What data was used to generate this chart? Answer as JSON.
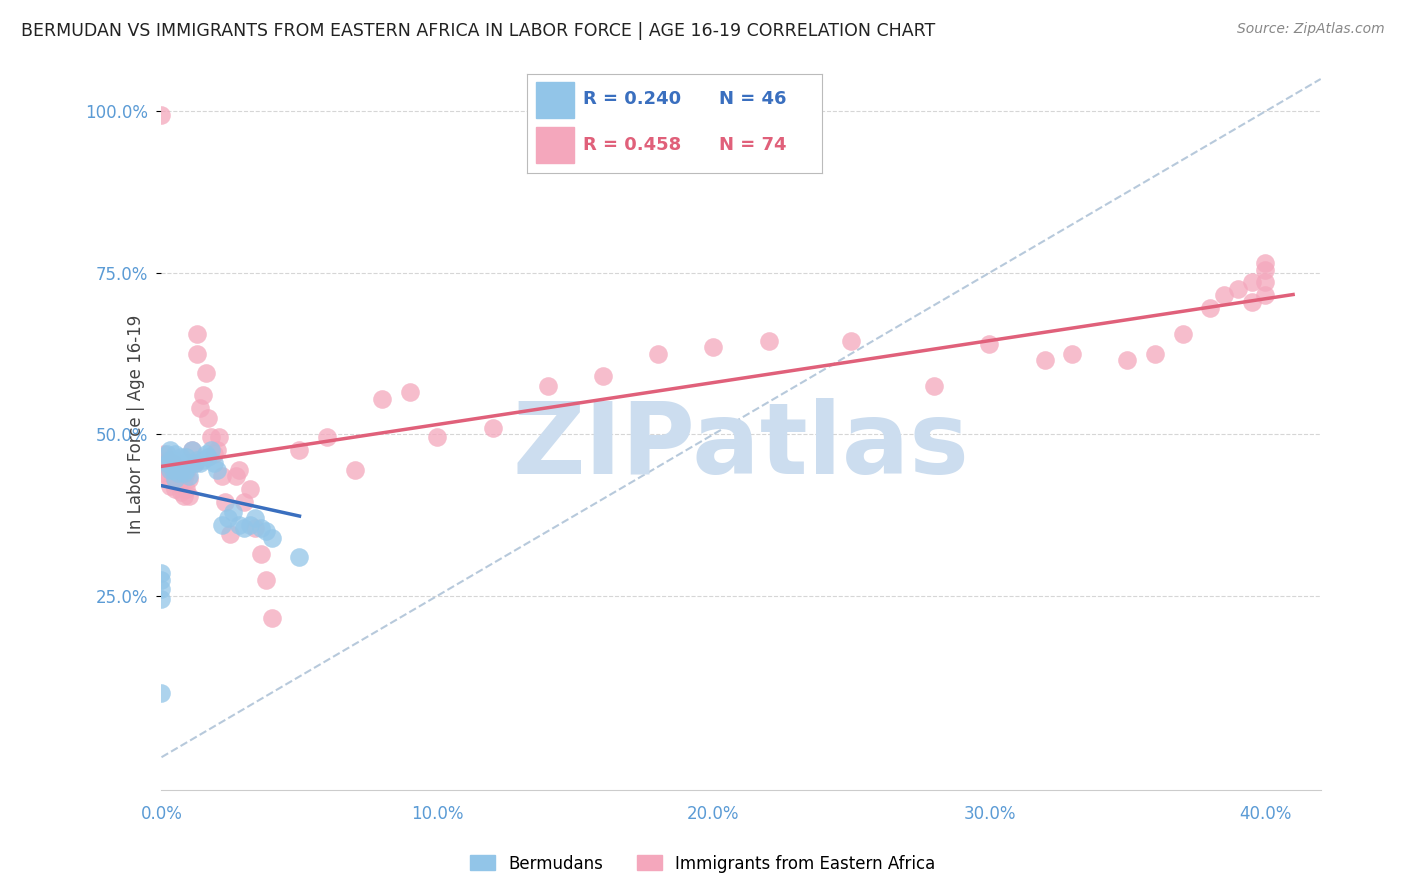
{
  "title": "BERMUDAN VS IMMIGRANTS FROM EASTERN AFRICA IN LABOR FORCE | AGE 16-19 CORRELATION CHART",
  "source": "Source: ZipAtlas.com",
  "ylabel": "In Labor Force | Age 16-19",
  "xlim": [
    0.0,
    0.42
  ],
  "ylim": [
    -0.05,
    1.08
  ],
  "yticks": [
    0.25,
    0.5,
    0.75,
    1.0
  ],
  "ytick_labels": [
    "25.0%",
    "50.0%",
    "75.0%",
    "100.0%"
  ],
  "xticks": [
    0.0,
    0.1,
    0.2,
    0.3,
    0.4
  ],
  "xtick_labels": [
    "0.0%",
    "10.0%",
    "20.0%",
    "30.0%",
    "40.0%"
  ],
  "legend1_r": "0.240",
  "legend1_n": "46",
  "legend2_r": "0.458",
  "legend2_n": "74",
  "blue_color": "#92c5e8",
  "pink_color": "#f4a7bc",
  "blue_line_color": "#3a6fbf",
  "pink_line_color": "#e0607a",
  "tick_color": "#5b9bd5",
  "title_color": "#222222",
  "watermark_color": "#ccddef",
  "watermark_text": "ZIPatlas",
  "background_color": "#ffffff",
  "grid_color": "#cccccc",
  "blue_x": [
    0.0,
    0.0,
    0.0,
    0.0,
    0.0,
    0.002,
    0.002,
    0.003,
    0.003,
    0.003,
    0.004,
    0.004,
    0.005,
    0.005,
    0.005,
    0.006,
    0.006,
    0.007,
    0.007,
    0.008,
    0.008,
    0.009,
    0.009,
    0.01,
    0.01,
    0.011,
    0.012,
    0.013,
    0.014,
    0.015,
    0.016,
    0.017,
    0.018,
    0.019,
    0.02,
    0.022,
    0.024,
    0.026,
    0.028,
    0.03,
    0.032,
    0.034,
    0.036,
    0.038,
    0.04,
    0.05
  ],
  "blue_y": [
    0.1,
    0.245,
    0.26,
    0.275,
    0.285,
    0.455,
    0.47,
    0.445,
    0.46,
    0.475,
    0.445,
    0.46,
    0.43,
    0.445,
    0.47,
    0.44,
    0.455,
    0.445,
    0.465,
    0.44,
    0.455,
    0.445,
    0.465,
    0.435,
    0.455,
    0.475,
    0.455,
    0.46,
    0.455,
    0.46,
    0.47,
    0.465,
    0.475,
    0.455,
    0.445,
    0.36,
    0.37,
    0.38,
    0.36,
    0.355,
    0.36,
    0.37,
    0.355,
    0.35,
    0.34,
    0.31
  ],
  "pink_x": [
    0.0,
    0.0,
    0.001,
    0.001,
    0.002,
    0.002,
    0.003,
    0.003,
    0.004,
    0.004,
    0.005,
    0.005,
    0.006,
    0.006,
    0.007,
    0.007,
    0.008,
    0.008,
    0.009,
    0.009,
    0.01,
    0.01,
    0.011,
    0.012,
    0.013,
    0.013,
    0.014,
    0.015,
    0.016,
    0.017,
    0.018,
    0.019,
    0.02,
    0.021,
    0.022,
    0.023,
    0.025,
    0.027,
    0.028,
    0.03,
    0.032,
    0.034,
    0.036,
    0.038,
    0.04,
    0.05,
    0.06,
    0.07,
    0.08,
    0.09,
    0.1,
    0.12,
    0.14,
    0.16,
    0.18,
    0.2,
    0.22,
    0.25,
    0.28,
    0.3,
    0.32,
    0.33,
    0.35,
    0.36,
    0.37,
    0.38,
    0.385,
    0.39,
    0.395,
    0.395,
    0.4,
    0.4,
    0.4,
    0.4
  ],
  "pink_y": [
    0.995,
    0.44,
    0.455,
    0.47,
    0.435,
    0.46,
    0.42,
    0.445,
    0.435,
    0.455,
    0.415,
    0.44,
    0.425,
    0.445,
    0.41,
    0.435,
    0.405,
    0.43,
    0.415,
    0.44,
    0.405,
    0.43,
    0.475,
    0.455,
    0.625,
    0.655,
    0.54,
    0.56,
    0.595,
    0.525,
    0.495,
    0.47,
    0.475,
    0.495,
    0.435,
    0.395,
    0.345,
    0.435,
    0.445,
    0.395,
    0.415,
    0.355,
    0.315,
    0.275,
    0.215,
    0.475,
    0.495,
    0.445,
    0.555,
    0.565,
    0.495,
    0.51,
    0.575,
    0.59,
    0.625,
    0.635,
    0.645,
    0.645,
    0.575,
    0.64,
    0.615,
    0.625,
    0.615,
    0.625,
    0.655,
    0.695,
    0.715,
    0.725,
    0.735,
    0.705,
    0.715,
    0.735,
    0.755,
    0.765
  ]
}
